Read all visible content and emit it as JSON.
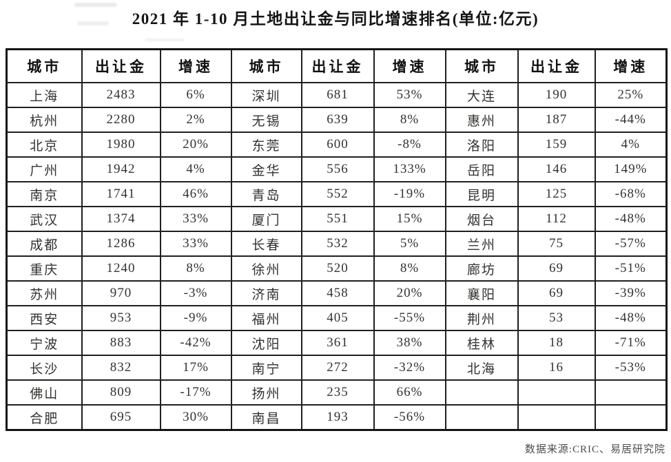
{
  "title": "2021 年 1-10 月土地出让金与同比增速排名(单位:亿元)",
  "footer": "数据来源:CRIC、易居研究院",
  "table": {
    "column_headers": [
      "城市",
      "出让金",
      "增速",
      "城市",
      "出让金",
      "增速",
      "城市",
      "出让金",
      "增速"
    ],
    "rows": [
      [
        "上海",
        "2483",
        "6%",
        "深圳",
        "681",
        "53%",
        "大连",
        "190",
        "25%"
      ],
      [
        "杭州",
        "2280",
        "2%",
        "无锡",
        "639",
        "8%",
        "惠州",
        "187",
        "-44%"
      ],
      [
        "北京",
        "1980",
        "20%",
        "东莞",
        "600",
        "-8%",
        "洛阳",
        "159",
        "4%"
      ],
      [
        "广州",
        "1942",
        "4%",
        "金华",
        "556",
        "133%",
        "岳阳",
        "146",
        "149%"
      ],
      [
        "南京",
        "1741",
        "46%",
        "青岛",
        "552",
        "-19%",
        "昆明",
        "125",
        "-68%"
      ],
      [
        "武汉",
        "1374",
        "33%",
        "厦门",
        "551",
        "15%",
        "烟台",
        "112",
        "-48%"
      ],
      [
        "成都",
        "1286",
        "33%",
        "长春",
        "532",
        "5%",
        "兰州",
        "75",
        "-57%"
      ],
      [
        "重庆",
        "1240",
        "8%",
        "徐州",
        "520",
        "8%",
        "廊坊",
        "69",
        "-51%"
      ],
      [
        "苏州",
        "970",
        "-3%",
        "济南",
        "458",
        "20%",
        "襄阳",
        "69",
        "-39%"
      ],
      [
        "西安",
        "953",
        "-9%",
        "福州",
        "405",
        "-55%",
        "荆州",
        "53",
        "-48%"
      ],
      [
        "宁波",
        "883",
        "-42%",
        "沈阳",
        "361",
        "38%",
        "桂林",
        "18",
        "-71%"
      ],
      [
        "长沙",
        "832",
        "17%",
        "南宁",
        "272",
        "-32%",
        "北海",
        "16",
        "-53%"
      ],
      [
        "佛山",
        "809",
        "-17%",
        "扬州",
        "235",
        "66%",
        "",
        "",
        ""
      ],
      [
        "合肥",
        "695",
        "30%",
        "南昌",
        "193",
        "-56%",
        "",
        "",
        ""
      ]
    ]
  }
}
